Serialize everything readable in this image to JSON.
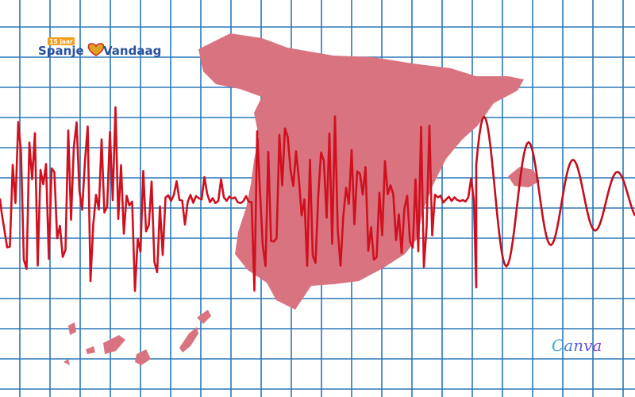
{
  "logo": {
    "badge": "15 jaar",
    "word1": "Spanje",
    "word2": "Vandaag"
  },
  "watermark": "Canva"
}
